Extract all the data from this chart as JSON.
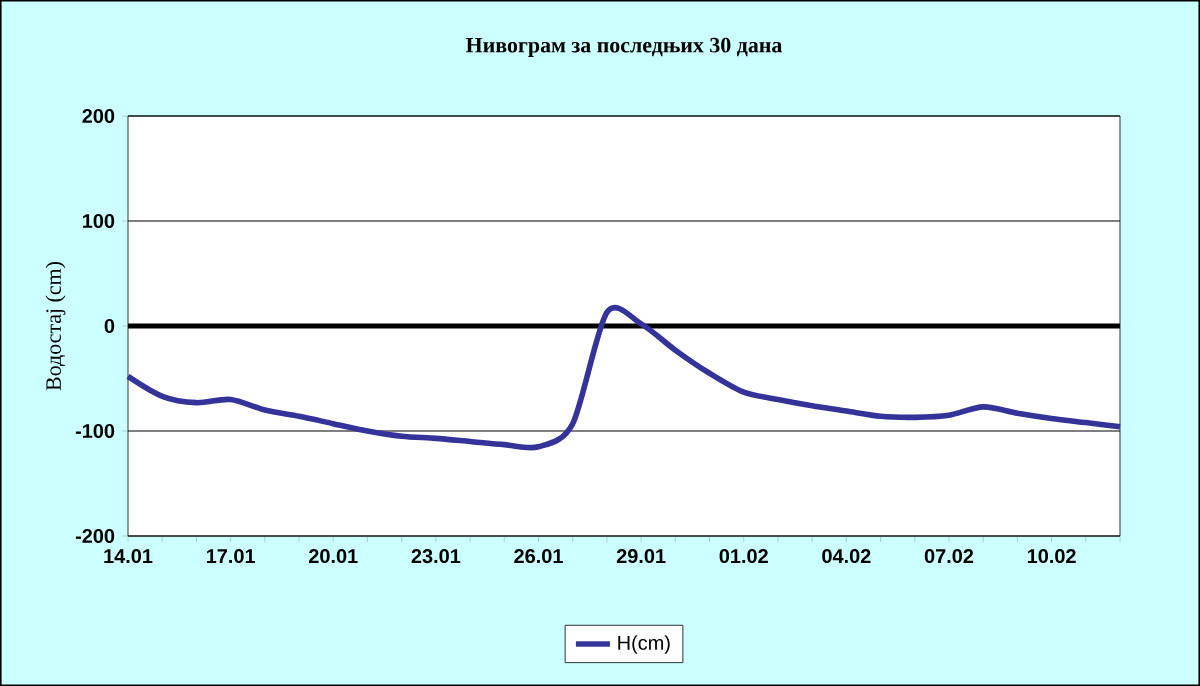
{
  "chart_data": {
    "type": "line",
    "title": "Нивограм за последњих 30 дана",
    "ylabel": "Водостај (cm)",
    "categories": [
      "14.01",
      null,
      null,
      "17.01",
      null,
      null,
      "20.01",
      null,
      null,
      "23.01",
      null,
      null,
      "26.01",
      null,
      null,
      "29.01",
      null,
      null,
      "01.02",
      null,
      null,
      "04.02",
      null,
      null,
      "07.02",
      null,
      null,
      "10.02",
      null,
      null
    ],
    "series": [
      {
        "name": "H(cm)",
        "color": "#333399",
        "values": [
          -48,
          -67,
          -73,
          -70,
          -80,
          -86,
          -93,
          -100,
          -105,
          -107,
          -110,
          -113,
          -115,
          -93,
          13,
          2,
          -23,
          -45,
          -63,
          -70,
          -76,
          -81,
          -86,
          -87,
          -85,
          -77,
          -83,
          -88,
          -92,
          -96
        ]
      }
    ],
    "ylim": [
      -200,
      200
    ],
    "yticks": [
      -200,
      -100,
      0,
      100,
      200
    ],
    "grid": "y",
    "legend": "bottom",
    "ref_lines": [
      {
        "axis": "y",
        "value": 0,
        "color": "#000000"
      }
    ]
  }
}
